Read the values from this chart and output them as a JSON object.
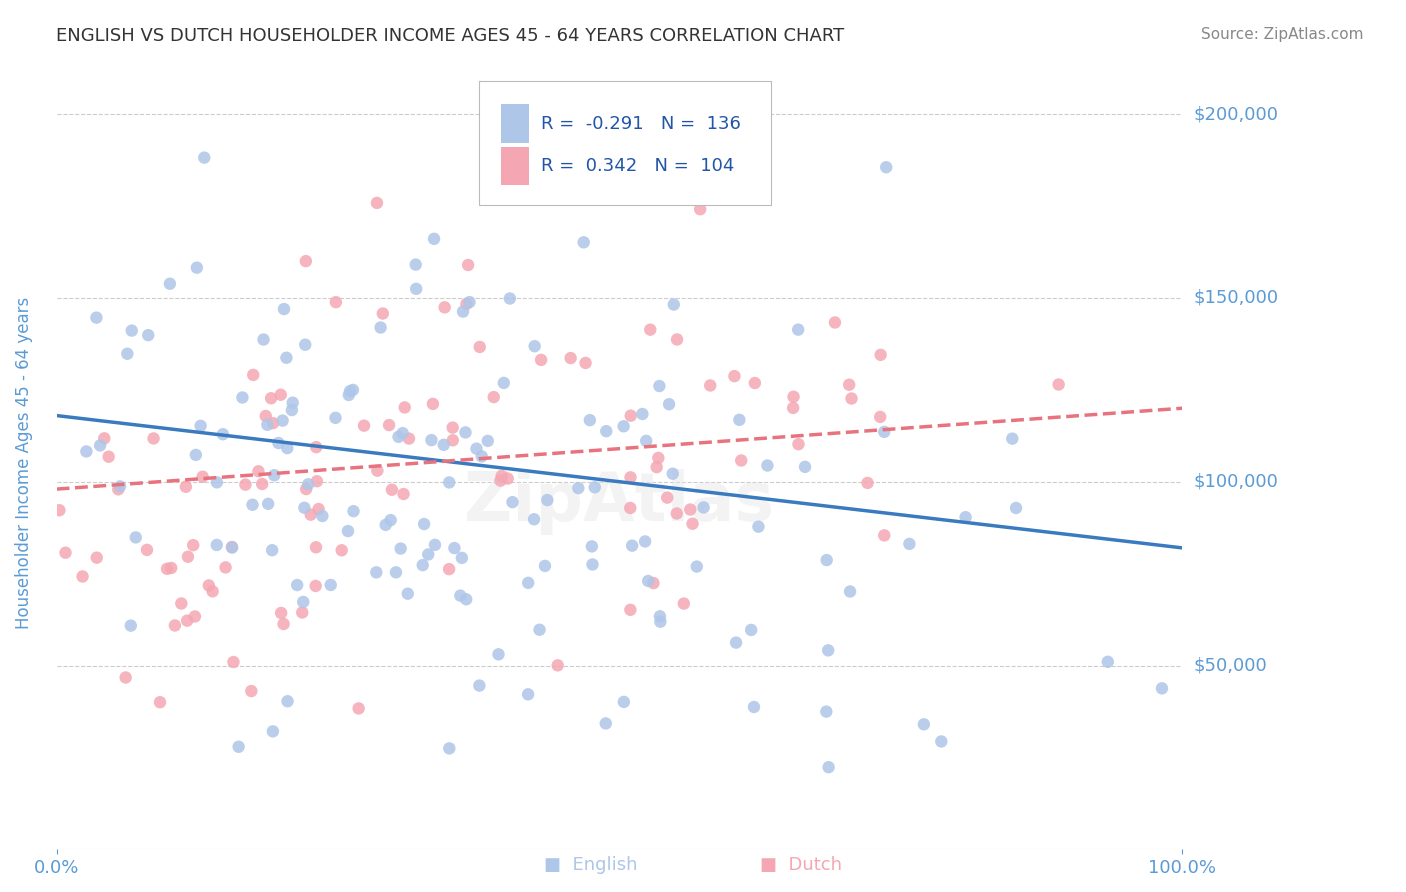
{
  "title": "ENGLISH VS DUTCH HOUSEHOLDER INCOME AGES 45 - 64 YEARS CORRELATION CHART",
  "source": "Source: ZipAtlas.com",
  "xlabel": "",
  "ylabel": "Householder Income Ages 45 - 64 years",
  "xlim": [
    0,
    1
  ],
  "ylim": [
    0,
    210000
  ],
  "yticks": [
    0,
    50000,
    100000,
    150000,
    200000
  ],
  "ytick_labels": [
    "",
    "$50,000",
    "$100,000",
    "$150,000",
    "$200,000"
  ],
  "xtick_labels": [
    "0.0%",
    "100.0%"
  ],
  "legend_entries": [
    {
      "label": "English",
      "color": "#aec6e8"
    },
    {
      "label": "Dutch",
      "color": "#f4a7b3"
    }
  ],
  "english_R": -0.291,
  "english_N": 136,
  "dutch_R": 0.342,
  "dutch_N": 104,
  "english_color": "#5b9bd5",
  "dutch_color": "#e8737f",
  "english_scatter_color": "#aec6e8",
  "dutch_scatter_color": "#f4a7b3",
  "trend_color_english": "#3a7bbf",
  "trend_color_dutch": "#e8737f",
  "background_color": "#ffffff",
  "grid_color": "#cccccc",
  "title_color": "#333333",
  "axis_label_color": "#5b9bd5",
  "tick_color": "#5b9bd5",
  "watermark": "ZipAtlas",
  "english_line": {
    "x0": 0.0,
    "y0": 118000,
    "x1": 1.0,
    "y1": 82000
  },
  "dutch_line": {
    "x0": 0.0,
    "y0": 98000,
    "x1": 1.0,
    "y1": 120000
  }
}
